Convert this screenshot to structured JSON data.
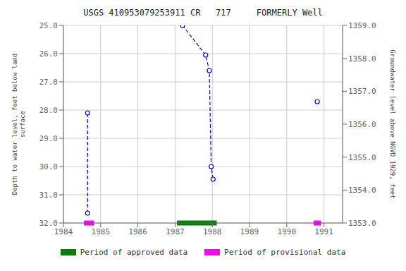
{
  "chart_data": {
    "type": "line",
    "title": "USGS 410953079253911 CR   717     FORMERLY Well",
    "y_label": "Depth to water level, feet below land\n surface",
    "y2_label": "Groundwater level above NGVD 1929, feet",
    "xlim": [
      1984,
      1991.5
    ],
    "xticks": [
      1984,
      1985,
      1986,
      1987,
      1988,
      1989,
      1990,
      1991
    ],
    "ylim": [
      32.0,
      25.0
    ],
    "yticks": [
      {
        "value": 25.0,
        "label": "25.0"
      },
      {
        "value": 26.0,
        "label": "26.0"
      },
      {
        "value": 27.0,
        "label": "27.0"
      },
      {
        "value": 28.0,
        "label": "28.0"
      },
      {
        "value": 29.0,
        "label": "29.0"
      },
      {
        "value": 30.0,
        "label": "30.0"
      },
      {
        "value": 31.0,
        "label": "31.0"
      },
      {
        "value": 32.0,
        "label": "32.0"
      }
    ],
    "y2lim": [
      1353.0,
      1359.0
    ],
    "y2ticks": [
      {
        "value": 1353.0,
        "label": "1353.0"
      },
      {
        "value": 1354.0,
        "label": "1354.0"
      },
      {
        "value": 1355.0,
        "label": "1355.0"
      },
      {
        "value": 1356.0,
        "label": "1356.0"
      },
      {
        "value": 1357.0,
        "label": "1357.0"
      },
      {
        "value": 1358.0,
        "label": "1358.0"
      },
      {
        "value": 1359.0,
        "label": "1359.0"
      }
    ],
    "series": [
      {
        "color": "#0000cc",
        "line_style": "dashed",
        "marker": "o",
        "x": [
          1984.65,
          1984.65
        ],
        "values": [
          31.65,
          28.1
        ]
      },
      {
        "color": "#0000cc",
        "line_style": "dashed",
        "marker": "o",
        "x": [
          1987.2,
          1987.82,
          1987.92,
          1987.97,
          1988.02
        ],
        "values": [
          25.0,
          26.05,
          26.6,
          30.0,
          30.45
        ]
      },
      {
        "color": "#0000cc",
        "line_style": "none",
        "marker": "o",
        "x": [
          1990.82
        ],
        "values": [
          27.7
        ]
      }
    ],
    "periods": [
      {
        "name": "Period of approved data",
        "color": "#008000",
        "y": 32.0,
        "ranges": [
          [
            1987.05,
            1988.12
          ]
        ]
      },
      {
        "name": "Period of provisional data",
        "color": "#ff00ff",
        "y": 32.0,
        "ranges": [
          [
            1984.55,
            1984.82
          ],
          [
            1990.72,
            1990.92
          ]
        ]
      }
    ],
    "grid": true,
    "legend": "bottom"
  }
}
